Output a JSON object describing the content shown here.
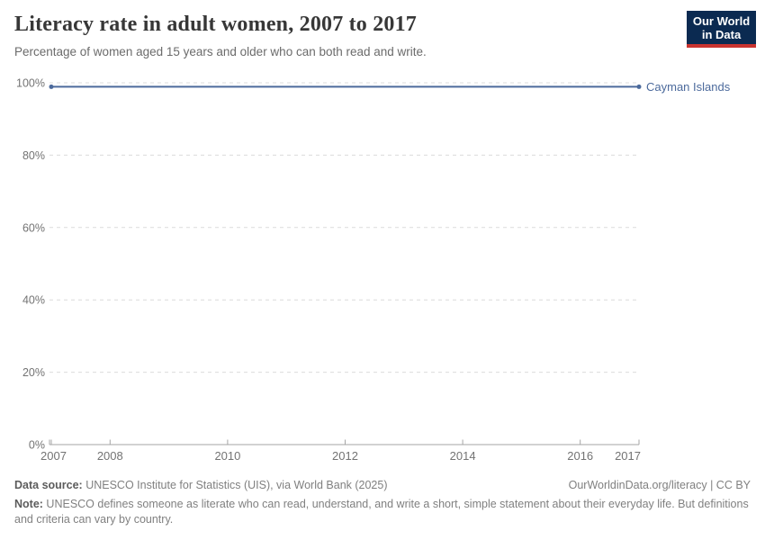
{
  "header": {
    "title": "Literacy rate in adult women, 2007 to 2017",
    "subtitle": "Percentage of women aged 15 years and older who can both read and write.",
    "logo": {
      "line1": "Our World",
      "line2": "in Data"
    }
  },
  "chart_data": {
    "type": "line",
    "title": "Literacy rate in adult women, 2007 to 2017",
    "xlim": [
      2007,
      2017
    ],
    "ylim": [
      0,
      100
    ],
    "x_ticks": [
      2007,
      2008,
      2010,
      2012,
      2014,
      2016,
      2017
    ],
    "x_tick_labels": [
      "2007",
      "2008",
      "2010",
      "2012",
      "2014",
      "2016",
      "2017"
    ],
    "y_ticks": [
      0,
      20,
      40,
      60,
      80,
      100
    ],
    "y_tick_labels": [
      "0%",
      "20%",
      "40%",
      "60%",
      "80%",
      "100%"
    ],
    "grid": "horizontal-dashed",
    "legend": "end-of-line-label",
    "series": [
      {
        "name": "Cayman Islands",
        "color": "#4c6a9c",
        "x": [
          2007,
          2017
        ],
        "values": [
          98.9,
          98.9
        ],
        "endpoint_markers": true
      }
    ]
  },
  "colors": {
    "background": "#ffffff",
    "grid": "#dcdcdc",
    "axis": "#a5a5a5",
    "tick_label": "#737373",
    "series_blue": "#4c6a9c",
    "logo_bg": "#0b2a51",
    "logo_accent": "#c9332f"
  },
  "footer": {
    "source_label": "Data source:",
    "source_text": " UNESCO Institute for Statistics (UIS), via World Bank (2025)",
    "license_text": "OurWorldinData.org/literacy | CC BY",
    "note_label": "Note:",
    "note_text": " UNESCO defines someone as literate who can read, understand, and write a short, simple statement about their everyday life. But definitions and criteria can vary by country."
  }
}
